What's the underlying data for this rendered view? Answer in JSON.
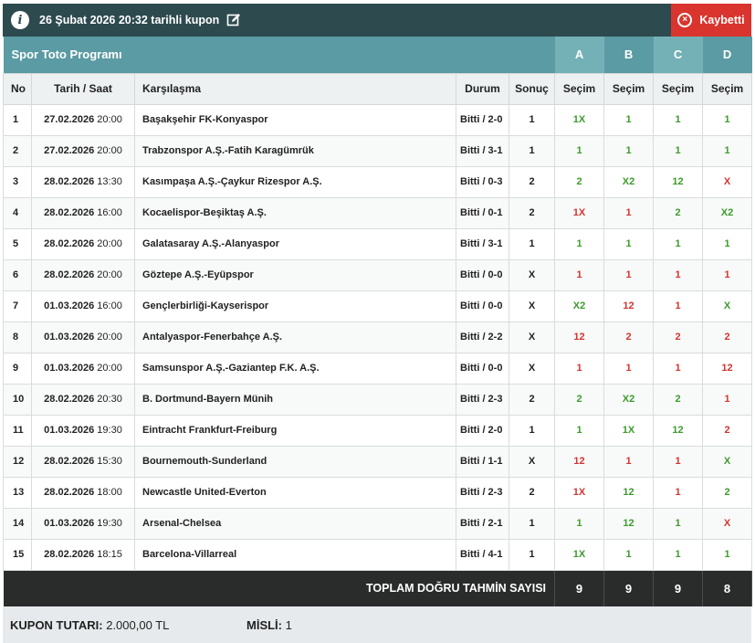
{
  "header": {
    "title": "26 Şubat 2026 20:32 tarihli kupon",
    "status": "Kaybetti",
    "info_glyph": "i",
    "status_glyph": "×"
  },
  "program": {
    "title": "Spor Toto Programı",
    "columns": [
      "A",
      "B",
      "C",
      "D"
    ]
  },
  "columns": {
    "no": "No",
    "date": "Tarih / Saat",
    "match": "Karşılaşma",
    "durum": "Durum",
    "sonuc": "Sonuç",
    "secim": "Seçim"
  },
  "colors": {
    "green": "#3c9b2b",
    "red": "#d2352f"
  },
  "rows": [
    {
      "no": "1",
      "date": "27.02.2026",
      "time": "20:00",
      "match": "Başakşehir FK-Konyaspor",
      "durum": "Bitti / 2-0",
      "sonuc": "1",
      "picks": [
        {
          "v": "1X",
          "ok": true
        },
        {
          "v": "1",
          "ok": true
        },
        {
          "v": "1",
          "ok": true
        },
        {
          "v": "1",
          "ok": true
        }
      ]
    },
    {
      "no": "2",
      "date": "27.02.2026",
      "time": "20:00",
      "match": "Trabzonspor A.Ş.-Fatih Karagümrük",
      "durum": "Bitti / 3-1",
      "sonuc": "1",
      "picks": [
        {
          "v": "1",
          "ok": true
        },
        {
          "v": "1",
          "ok": true
        },
        {
          "v": "1",
          "ok": true
        },
        {
          "v": "1",
          "ok": true
        }
      ]
    },
    {
      "no": "3",
      "date": "28.02.2026",
      "time": "13:30",
      "match": "Kasımpaşa A.Ş.-Çaykur Rizespor A.Ş.",
      "durum": "Bitti / 0-3",
      "sonuc": "2",
      "picks": [
        {
          "v": "2",
          "ok": true
        },
        {
          "v": "X2",
          "ok": true
        },
        {
          "v": "12",
          "ok": true
        },
        {
          "v": "X",
          "ok": false
        }
      ]
    },
    {
      "no": "4",
      "date": "28.02.2026",
      "time": "16:00",
      "match": "Kocaelispor-Beşiktaş A.Ş.",
      "durum": "Bitti / 0-1",
      "sonuc": "2",
      "picks": [
        {
          "v": "1X",
          "ok": false
        },
        {
          "v": "1",
          "ok": false
        },
        {
          "v": "2",
          "ok": true
        },
        {
          "v": "X2",
          "ok": true
        }
      ]
    },
    {
      "no": "5",
      "date": "28.02.2026",
      "time": "20:00",
      "match": "Galatasaray A.Ş.-Alanyaspor",
      "durum": "Bitti / 3-1",
      "sonuc": "1",
      "picks": [
        {
          "v": "1",
          "ok": true
        },
        {
          "v": "1",
          "ok": true
        },
        {
          "v": "1",
          "ok": true
        },
        {
          "v": "1",
          "ok": true
        }
      ]
    },
    {
      "no": "6",
      "date": "28.02.2026",
      "time": "20:00",
      "match": "Göztepe A.Ş.-Eyüpspor",
      "durum": "Bitti / 0-0",
      "sonuc": "X",
      "picks": [
        {
          "v": "1",
          "ok": false
        },
        {
          "v": "1",
          "ok": false
        },
        {
          "v": "1",
          "ok": false
        },
        {
          "v": "1",
          "ok": false
        }
      ]
    },
    {
      "no": "7",
      "date": "01.03.2026",
      "time": "16:00",
      "match": "Gençlerbirliği-Kayserispor",
      "durum": "Bitti / 0-0",
      "sonuc": "X",
      "picks": [
        {
          "v": "X2",
          "ok": true
        },
        {
          "v": "12",
          "ok": false
        },
        {
          "v": "1",
          "ok": false
        },
        {
          "v": "X",
          "ok": true
        }
      ]
    },
    {
      "no": "8",
      "date": "01.03.2026",
      "time": "20:00",
      "match": "Antalyaspor-Fenerbahçe A.Ş.",
      "durum": "Bitti / 2-2",
      "sonuc": "X",
      "picks": [
        {
          "v": "12",
          "ok": false
        },
        {
          "v": "2",
          "ok": false
        },
        {
          "v": "2",
          "ok": false
        },
        {
          "v": "2",
          "ok": false
        }
      ]
    },
    {
      "no": "9",
      "date": "01.03.2026",
      "time": "20:00",
      "match": "Samsunspor A.Ş.-Gaziantep F.K. A.Ş.",
      "durum": "Bitti / 0-0",
      "sonuc": "X",
      "picks": [
        {
          "v": "1",
          "ok": false
        },
        {
          "v": "1",
          "ok": false
        },
        {
          "v": "1",
          "ok": false
        },
        {
          "v": "12",
          "ok": false
        }
      ]
    },
    {
      "no": "10",
      "date": "28.02.2026",
      "time": "20:30",
      "match": "B. Dortmund-Bayern Münih",
      "durum": "Bitti / 2-3",
      "sonuc": "2",
      "picks": [
        {
          "v": "2",
          "ok": true
        },
        {
          "v": "X2",
          "ok": true
        },
        {
          "v": "2",
          "ok": true
        },
        {
          "v": "1",
          "ok": false
        }
      ]
    },
    {
      "no": "11",
      "date": "01.03.2026",
      "time": "19:30",
      "match": "Eintracht Frankfurt-Freiburg",
      "durum": "Bitti / 2-0",
      "sonuc": "1",
      "picks": [
        {
          "v": "1",
          "ok": true
        },
        {
          "v": "1X",
          "ok": true
        },
        {
          "v": "12",
          "ok": true
        },
        {
          "v": "2",
          "ok": false
        }
      ]
    },
    {
      "no": "12",
      "date": "28.02.2026",
      "time": "15:30",
      "match": "Bournemouth-Sunderland",
      "durum": "Bitti / 1-1",
      "sonuc": "X",
      "picks": [
        {
          "v": "12",
          "ok": false
        },
        {
          "v": "1",
          "ok": false
        },
        {
          "v": "1",
          "ok": false
        },
        {
          "v": "X",
          "ok": true
        }
      ]
    },
    {
      "no": "13",
      "date": "28.02.2026",
      "time": "18:00",
      "match": "Newcastle United-Everton",
      "durum": "Bitti / 2-3",
      "sonuc": "2",
      "picks": [
        {
          "v": "1X",
          "ok": false
        },
        {
          "v": "12",
          "ok": true
        },
        {
          "v": "1",
          "ok": false
        },
        {
          "v": "2",
          "ok": true
        }
      ]
    },
    {
      "no": "14",
      "date": "01.03.2026",
      "time": "19:30",
      "match": "Arsenal-Chelsea",
      "durum": "Bitti / 2-1",
      "sonuc": "1",
      "picks": [
        {
          "v": "1",
          "ok": true
        },
        {
          "v": "12",
          "ok": true
        },
        {
          "v": "1",
          "ok": true
        },
        {
          "v": "X",
          "ok": false
        }
      ]
    },
    {
      "no": "15",
      "date": "28.02.2026",
      "time": "18:15",
      "match": "Barcelona-Villarreal",
      "durum": "Bitti / 4-1",
      "sonuc": "1",
      "picks": [
        {
          "v": "1X",
          "ok": true
        },
        {
          "v": "1",
          "ok": true
        },
        {
          "v": "1",
          "ok": true
        },
        {
          "v": "1",
          "ok": true
        }
      ]
    }
  ],
  "total": {
    "label": "TOPLAM DOĞRU TAHMİN SAYISI",
    "values": [
      "9",
      "9",
      "9",
      "8"
    ]
  },
  "footer": {
    "tutar_label": "KUPON TUTARI:",
    "tutar_value": "2.000,00 TL",
    "misli_label": "MİSLİ:",
    "misli_value": "1"
  }
}
